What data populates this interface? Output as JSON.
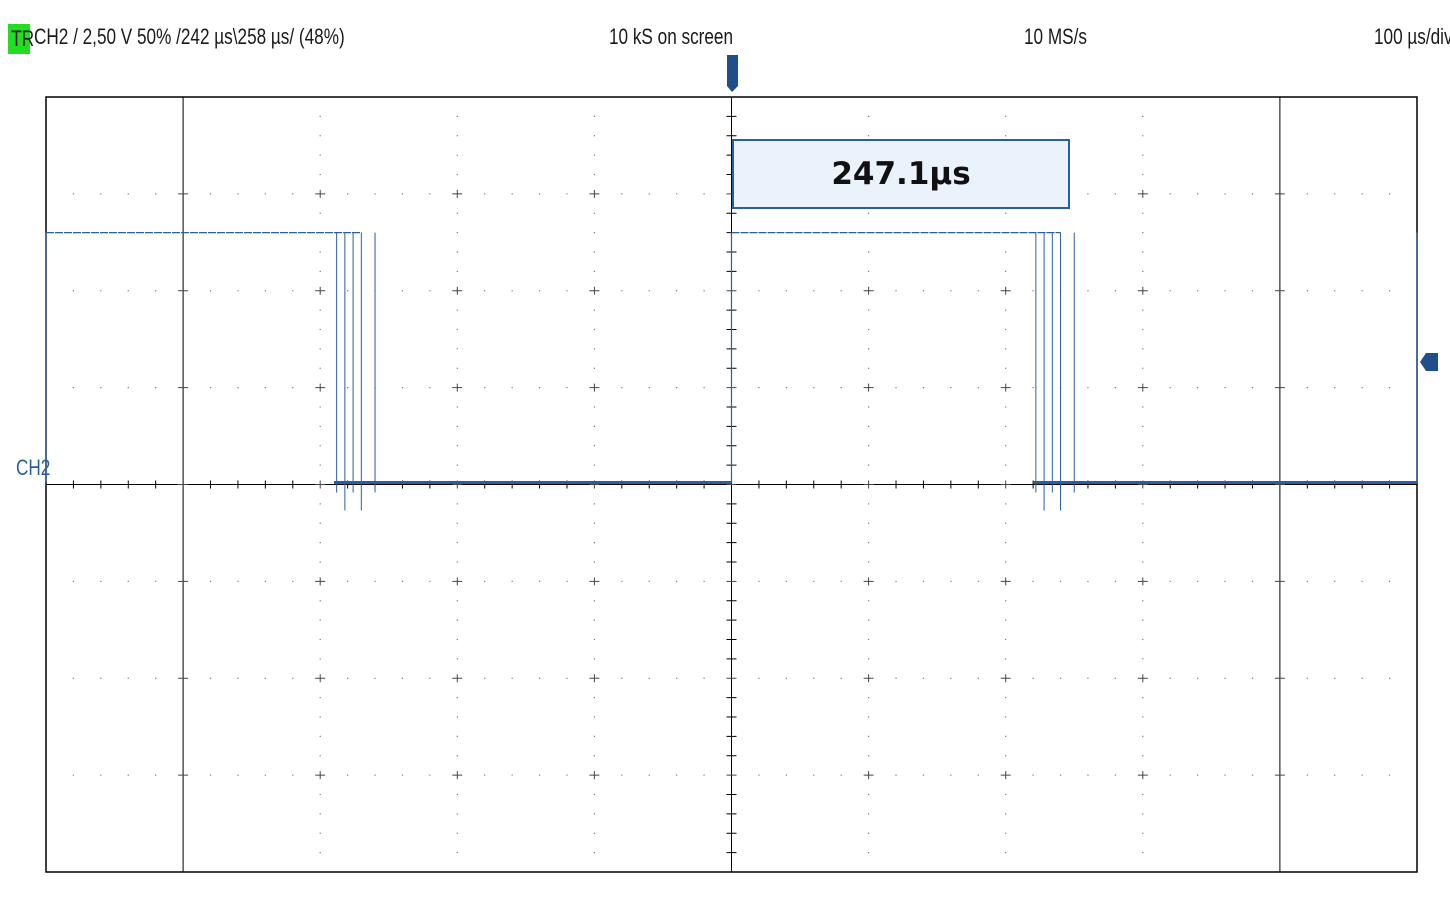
{
  "header": {
    "trigger_badge": "TR",
    "trigger_info": "CH2  /  2,50 V  50%  /242 µs\\258 µs/ (48%)",
    "record_length": "10 kS on screen",
    "sample_rate": "10 MS/s",
    "timebase": "100 µs/div"
  },
  "channel": {
    "label": "CH2",
    "color": "#2a5ea0"
  },
  "measurement": {
    "value": "247.1µs"
  },
  "waveform": {
    "type": "square pulse train",
    "pulses": [
      {
        "high_from_div": 0.0,
        "high_to_div": 2.3
      },
      {
        "high_from_div": 5.0,
        "high_to_div": 7.4
      },
      {
        "high_from_div": 10.0,
        "high_to_div": 10.0
      }
    ],
    "high_level_div": 2.6,
    "low_level_div": 0.0,
    "h_divisions": 10,
    "v_divisions": 8
  },
  "colors": {
    "grid": "#000000",
    "trace": "#2a5ea0",
    "trigger_badge": "#22dd22",
    "measurement_bg": "#eaf3fb"
  }
}
